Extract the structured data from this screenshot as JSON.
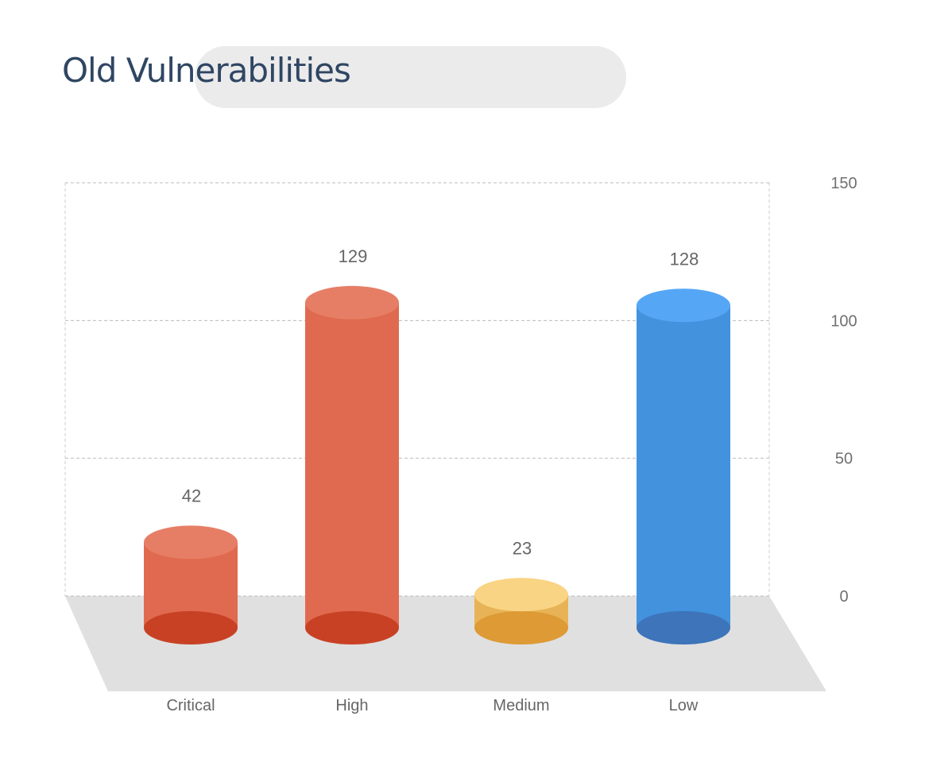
{
  "chart_data": {
    "type": "bar",
    "title": "Old Vulnerabilities",
    "categories": [
      "Critical",
      "High",
      "Medium",
      "Low"
    ],
    "values": [
      42,
      129,
      23,
      128
    ],
    "colors": [
      {
        "body": "#e06a4f",
        "top": "#e67e66",
        "bottom": "#c84125"
      },
      {
        "body": "#e06a4f",
        "top": "#e67e66",
        "bottom": "#c84125"
      },
      {
        "body": "#e8b356",
        "top": "#f9d484",
        "bottom": "#dd9a35"
      },
      {
        "body": "#4292de",
        "top": "#55a7f5",
        "bottom": "#3d74ba"
      }
    ],
    "ylim": [
      0,
      150
    ],
    "yticks": [
      0,
      50,
      100,
      150
    ],
    "ytick_labels": [
      "0",
      "50",
      "100",
      "150"
    ],
    "grid": true,
    "style": "3d-cylinder"
  }
}
